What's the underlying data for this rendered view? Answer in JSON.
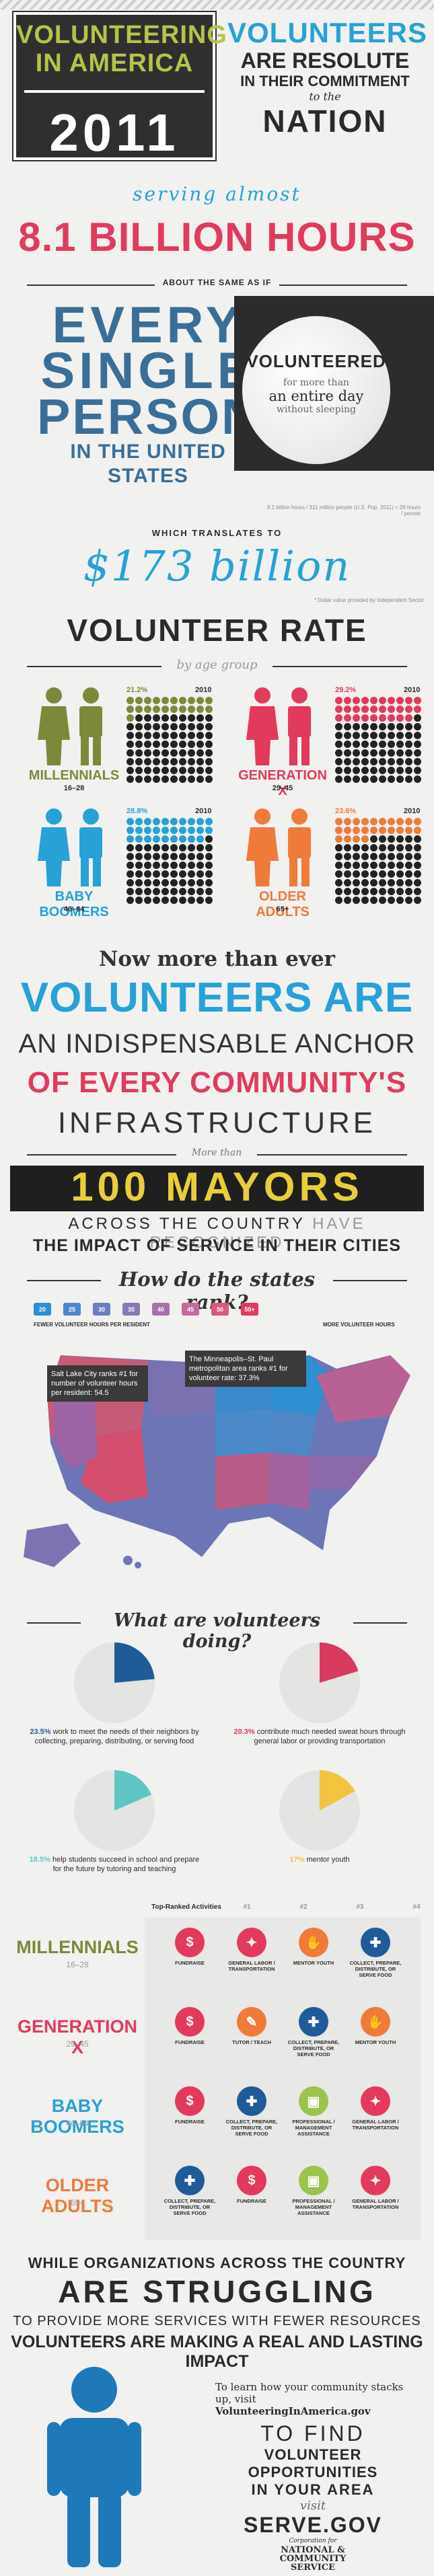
{
  "header": {
    "title_line1": "VOLUNTEERING",
    "title_line2": "IN AMERICA",
    "year": "2011",
    "right_line1": "VOLUNTEERS",
    "right_line2": "ARE RESOLUTE",
    "right_line3": "IN THEIR COMMITMENT",
    "right_line4": "to the",
    "right_line5": "NATION"
  },
  "hours": {
    "serving": "serving almost",
    "big": "8.1 BILLION HOURS",
    "about": "ABOUT THE SAME AS IF",
    "every1": "EVERY",
    "every2": "SINGLE",
    "every3": "PERSON",
    "every4": "IN THE UNITED STATES",
    "moon1": "VOLUNTEERED",
    "moon2": "for more than",
    "moon3": "an entire day",
    "moon4": "without sleeping",
    "footnote": "8.1 billion hours / 311 million people (U.S. Pop. 2011) = 26 hours / person",
    "translates": "WHICH TRANSLATES TO",
    "money": "$173 billion",
    "money_note": "* Dollar value provided by Independent Sector"
  },
  "rate": {
    "title": "VOLUNTEER RATE",
    "sub": "by age group",
    "groups": [
      {
        "name": "MILLENNIALS",
        "ages": "16–28",
        "pct": "21.2%",
        "year": "2010",
        "color": "#7a8a3a",
        "filled": 21
      },
      {
        "name": "GENERATION X",
        "ages": "29–45",
        "pct": "29.2%",
        "year": "2010",
        "color": "#e23a5d",
        "filled": 29
      },
      {
        "name": "BABY BOOMERS",
        "ages": "46–64",
        "pct": "28.8%",
        "year": "2010",
        "color": "#27a1d6",
        "filled": 29
      },
      {
        "name": "OLDER ADULTS",
        "ages": "65+",
        "pct": "23.6%",
        "year": "2010",
        "color": "#ef7b3b",
        "filled": 24
      }
    ]
  },
  "anchor": {
    "l1": "Now more than ever",
    "l2": "VOLUNTEERS ARE",
    "l3": "AN INDISPENSABLE ANCHOR",
    "l4": "OF EVERY COMMUNITY'S",
    "l5": "INFRASTRUCTURE",
    "more": "More than",
    "mayors": "100 MAYORS",
    "across1": "ACROSS THE COUNTRY",
    "across2": "HAVE RECOGNIZED",
    "impact": "THE IMPACT OF SERVICE IN THEIR CITIES"
  },
  "states": {
    "title": "How do the states rank?",
    "scale": [
      "20",
      "25",
      "30",
      "35",
      "40",
      "45",
      "50",
      "50+"
    ],
    "scale_colors": [
      "#2f8fd0",
      "#4d87c7",
      "#6b7fbd",
      "#8a78b3",
      "#a870a8",
      "#c5699e",
      "#d75a7d",
      "#e23a5d"
    ],
    "fewer": "FEWER VOLUNTEER HOURS PER RESIDENT",
    "more": "MORE VOLUNTEER HOURS",
    "slc": "Salt Lake City ranks #1 for number of volunteer hours per resident: 54.5",
    "msp": "The Minneapolis–St. Paul metropolitan area ranks #1 for volunteer rate: 37.3%"
  },
  "doing": {
    "title": "What are volunteers doing?",
    "items": [
      {
        "pct": "23.5%",
        "text": "work to meet the needs of their neighbors by collecting, preparing, distributing, or serving food",
        "color": "#1f5c97",
        "value": 23.5
      },
      {
        "pct": "20.3%",
        "text": "contribute much needed sweat hours through general labor or providing transportation",
        "color": "#d73a5f",
        "value": 20.3
      },
      {
        "pct": "18.5%",
        "text": "help students succeed in school and prepare for the future by tutoring and teaching",
        "color": "#5fc5c5",
        "value": 18.5
      },
      {
        "pct": "17%",
        "text": "mentor youth",
        "color": "#f3c43f",
        "value": 17
      }
    ]
  },
  "activities": {
    "header": "Top-Ranked Activities",
    "ranks": [
      "#1",
      "#2",
      "#3",
      "#4"
    ],
    "rows": [
      {
        "name": "MILLENNIALS",
        "ages": "16–28",
        "color": "#7a8a3a",
        "acts": [
          "FUNDRAISE",
          "GENERAL LABOR / TRANSPORTATION",
          "MENTOR YOUTH",
          "COLLECT, PREPARE, DISTRIBUTE, OR SERVE FOOD"
        ]
      },
      {
        "name": "GENERATION X",
        "ages": "29–45",
        "color": "#e23a5d",
        "acts": [
          "FUNDRAISE",
          "TUTOR / TEACH",
          "COLLECT, PREPARE, DISTRIBUTE, OR SERVE FOOD",
          "MENTOR YOUTH"
        ]
      },
      {
        "name": "BABY BOOMERS",
        "ages": "46–64",
        "color": "#27a1d6",
        "acts": [
          "FUNDRAISE",
          "COLLECT, PREPARE, DISTRIBUTE, OR SERVE FOOD",
          "PROFESSIONAL / MANAGEMENT ASSISTANCE",
          "GENERAL LABOR / TRANSPORTATION"
        ]
      },
      {
        "name": "OLDER ADULTS",
        "ages": "65+",
        "color": "#ef7b3b",
        "acts": [
          "COLLECT, PREPARE, DISTRIBUTE, OR SERVE FOOD",
          "FUNDRAISE",
          "PROFESSIONAL / MANAGEMENT ASSISTANCE",
          "GENERAL LABOR / TRANSPORTATION"
        ]
      }
    ]
  },
  "closing": {
    "l1": "WHILE ORGANIZATIONS ACROSS THE COUNTRY",
    "l2": "ARE STRUGGLING",
    "l3": "TO PROVIDE MORE SERVICES WITH FEWER RESOURCES",
    "l4": "VOLUNTEERS ARE MAKING A REAL AND LASTING IMPACT",
    "learn": "To learn how your community stacks up, visit",
    "learn_url": "VolunteeringInAmerica.gov",
    "find1": "TO FIND",
    "find2": "VOLUNTEER OPPORTUNITIES",
    "find3": "IN YOUR AREA",
    "visit": "visit",
    "serve": "SERVE.GOV",
    "corp_small": "Corporation for",
    "corp1": "NATIONAL &",
    "corp2": "COMMUNITY",
    "corp3": "SERVICE"
  }
}
